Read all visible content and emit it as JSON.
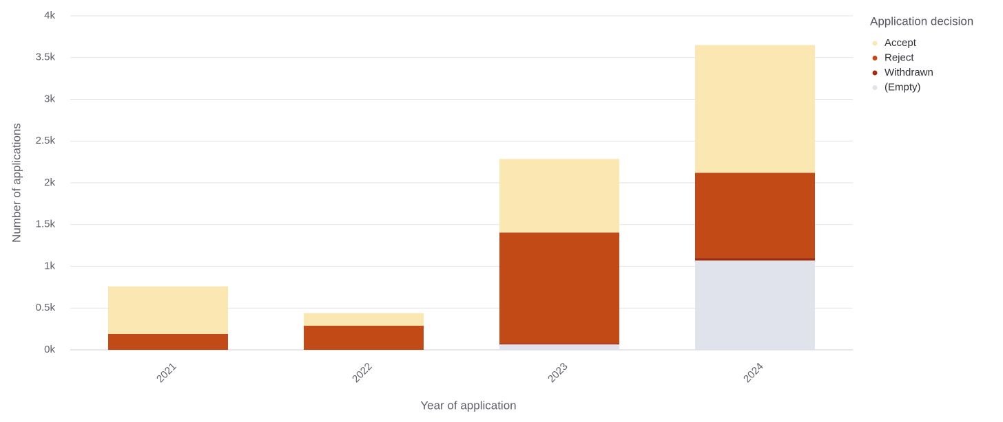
{
  "chart_data": {
    "type": "stacked-bar",
    "x_label": "Year of application",
    "y_label": "Number of applications",
    "legend_title": "Application decision",
    "categories": [
      "2021",
      "2022",
      "2023",
      "2024"
    ],
    "series": [
      {
        "name": "Accept",
        "color": "#fbe7b1",
        "values": [
          570,
          150,
          880,
          1530
        ]
      },
      {
        "name": "Reject",
        "color": "#c24a17",
        "values": [
          190,
          290,
          1325,
          1020
        ]
      },
      {
        "name": "Withdrawn",
        "color": "#9e2a0c",
        "values": [
          0,
          0,
          15,
          30
        ]
      },
      {
        "name": "(Empty)",
        "color": "#e1e3ec",
        "values": [
          0,
          0,
          65,
          1070
        ]
      }
    ],
    "ylim": [
      0,
      4000
    ],
    "yticks": [
      {
        "value": 0,
        "label": "0k"
      },
      {
        "value": 500,
        "label": "0.5k"
      },
      {
        "value": 1000,
        "label": "1k"
      },
      {
        "value": 1500,
        "label": "1.5k"
      },
      {
        "value": 2000,
        "label": "2k"
      },
      {
        "value": 2500,
        "label": "2.5k"
      },
      {
        "value": 3000,
        "label": "3k"
      },
      {
        "value": 3500,
        "label": "3.5k"
      },
      {
        "value": 4000,
        "label": "4k"
      }
    ],
    "grid": true,
    "legend_position": "right"
  }
}
